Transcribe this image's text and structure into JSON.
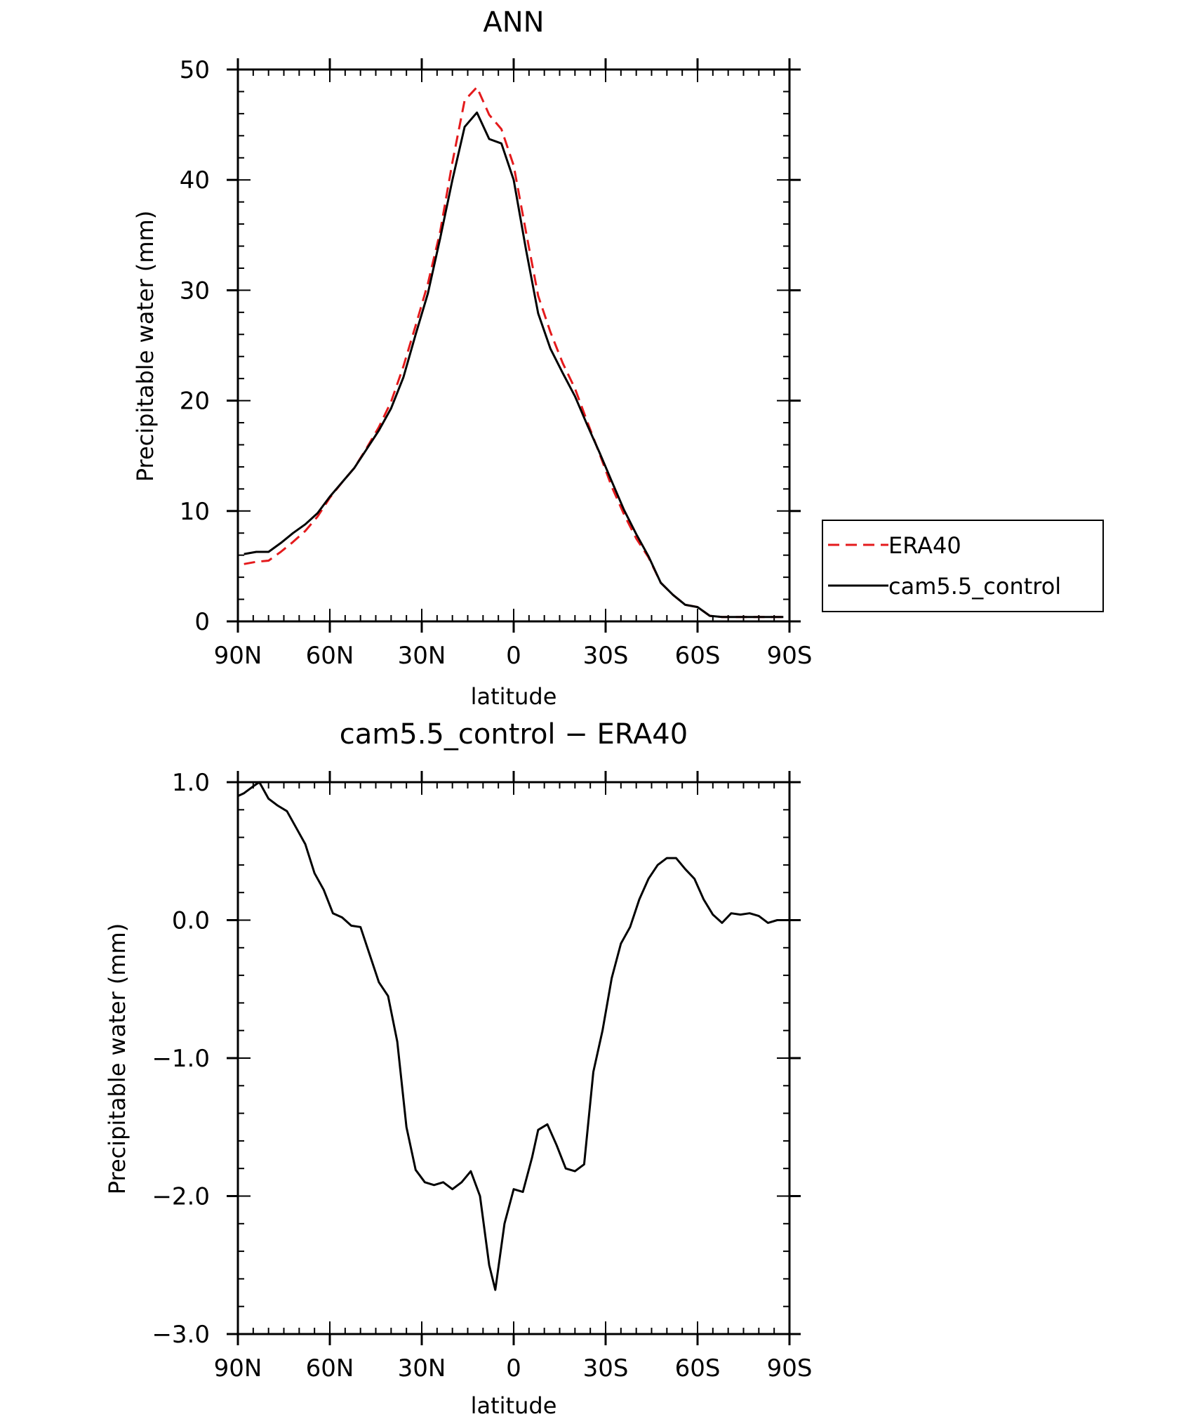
{
  "chart_data": [
    {
      "type": "line",
      "title": "ANN",
      "xlabel": "latitude",
      "ylabel": "Precipitable water (mm)",
      "xlim": [
        90,
        -90
      ],
      "ylim": [
        0,
        50
      ],
      "x_tick_values": [
        90,
        60,
        30,
        0,
        -30,
        -60,
        -90
      ],
      "x_tick_labels": [
        "90N",
        "60N",
        "30N",
        "0",
        "30S",
        "60S",
        "90S"
      ],
      "y_tick_values": [
        0,
        10,
        20,
        30,
        40,
        50
      ],
      "y_tick_labels": [
        "0",
        "10",
        "20",
        "30",
        "40",
        "50"
      ],
      "legend_position": "right",
      "x": [
        88,
        84,
        80,
        76,
        72,
        68,
        64,
        60,
        56,
        52,
        48,
        44,
        40,
        36,
        32,
        28,
        24,
        20,
        16,
        12,
        8,
        4,
        0,
        -4,
        -8,
        -12,
        -16,
        -20,
        -24,
        -28,
        -32,
        -36,
        -40,
        -44,
        -48,
        -52,
        -56,
        -60,
        -64,
        -68,
        -72,
        -76,
        -80,
        -84,
        -88
      ],
      "series": [
        {
          "name": "ERA40",
          "color": "#e41a1c",
          "dash": true,
          "values": [
            5.2,
            5.4,
            5.5,
            6.3,
            7.2,
            8.2,
            9.5,
            11.2,
            12.6,
            13.9,
            15.7,
            17.6,
            19.9,
            23.1,
            26.8,
            30.6,
            35.3,
            41.6,
            47.2,
            48.4,
            45.9,
            44.6,
            41.3,
            35.3,
            29.5,
            26.2,
            23.4,
            21.1,
            18.1,
            15.2,
            12.2,
            9.7,
            7.5,
            5.8,
            3.5,
            2.4,
            1.5,
            1.3,
            0.5,
            0.4,
            0.4,
            0.4,
            0.4,
            0.4,
            0.4
          ]
        },
        {
          "name": "cam5.5_control",
          "color": "#000000",
          "dash": false,
          "values": [
            6.1,
            6.3,
            6.3,
            7.1,
            8.0,
            8.8,
            9.8,
            11.3,
            12.6,
            13.9,
            15.6,
            17.3,
            19.3,
            22.1,
            26.0,
            29.7,
            34.7,
            40.0,
            44.8,
            46.1,
            43.7,
            43.3,
            40.0,
            33.7,
            27.9,
            24.7,
            22.5,
            20.4,
            17.8,
            15.3,
            12.7,
            10.1,
            7.9,
            5.9,
            3.5,
            2.4,
            1.5,
            1.3,
            0.5,
            0.4,
            0.4,
            0.4,
            0.4,
            0.4,
            0.4
          ]
        }
      ]
    },
    {
      "type": "line",
      "title": "cam5.5_control − ERA40",
      "xlabel": "latitude",
      "ylabel": "Precipitable water (mm)",
      "xlim": [
        90,
        -90
      ],
      "ylim": [
        -3,
        1
      ],
      "x_tick_values": [
        90,
        60,
        30,
        0,
        -30,
        -60,
        -90
      ],
      "x_tick_labels": [
        "90N",
        "60N",
        "30N",
        "0",
        "30S",
        "60S",
        "90S"
      ],
      "y_tick_values": [
        1,
        0,
        -1,
        -2,
        -3
      ],
      "y_tick_labels": [
        "1.0",
        "0.0",
        "−1.0",
        "−2.0",
        "−3.0"
      ],
      "x": [
        90,
        88,
        85,
        83,
        80,
        77,
        74,
        71,
        68,
        65,
        62,
        59,
        56,
        53,
        50,
        47,
        44,
        41,
        38,
        35,
        32,
        29,
        26,
        23,
        20,
        17,
        14,
        11,
        8,
        6,
        3,
        0,
        -3,
        -6,
        -8,
        -11,
        -14,
        -17,
        -20,
        -23,
        -26,
        -29,
        -32,
        -35,
        -38,
        -41,
        -44,
        -47,
        -50,
        -53,
        -56,
        -59,
        -62,
        -65,
        -68,
        -71,
        -74,
        -77,
        -80,
        -83,
        -86,
        -88,
        -90
      ],
      "series": [
        {
          "name": "",
          "color": "#000000",
          "dash": false,
          "values": [
            0.9,
            0.92,
            0.97,
            1.0,
            0.88,
            0.83,
            0.79,
            0.67,
            0.55,
            0.34,
            0.22,
            0.05,
            0.02,
            -0.04,
            -0.05,
            -0.25,
            -0.45,
            -0.55,
            -0.88,
            -1.5,
            -1.81,
            -1.9,
            -1.92,
            -1.9,
            -1.95,
            -1.9,
            -1.82,
            -2.0,
            -2.5,
            -2.68,
            -2.2,
            -1.95,
            -1.97,
            -1.72,
            -1.52,
            -1.48,
            -1.63,
            -1.8,
            -1.82,
            -1.77,
            -1.1,
            -0.8,
            -0.42,
            -0.17,
            -0.05,
            0.15,
            0.3,
            0.4,
            0.45,
            0.45,
            0.37,
            0.3,
            0.15,
            0.04,
            -0.02,
            0.05,
            0.04,
            0.05,
            0.03,
            -0.02,
            0.0,
            0.0,
            0.0
          ]
        }
      ]
    }
  ]
}
